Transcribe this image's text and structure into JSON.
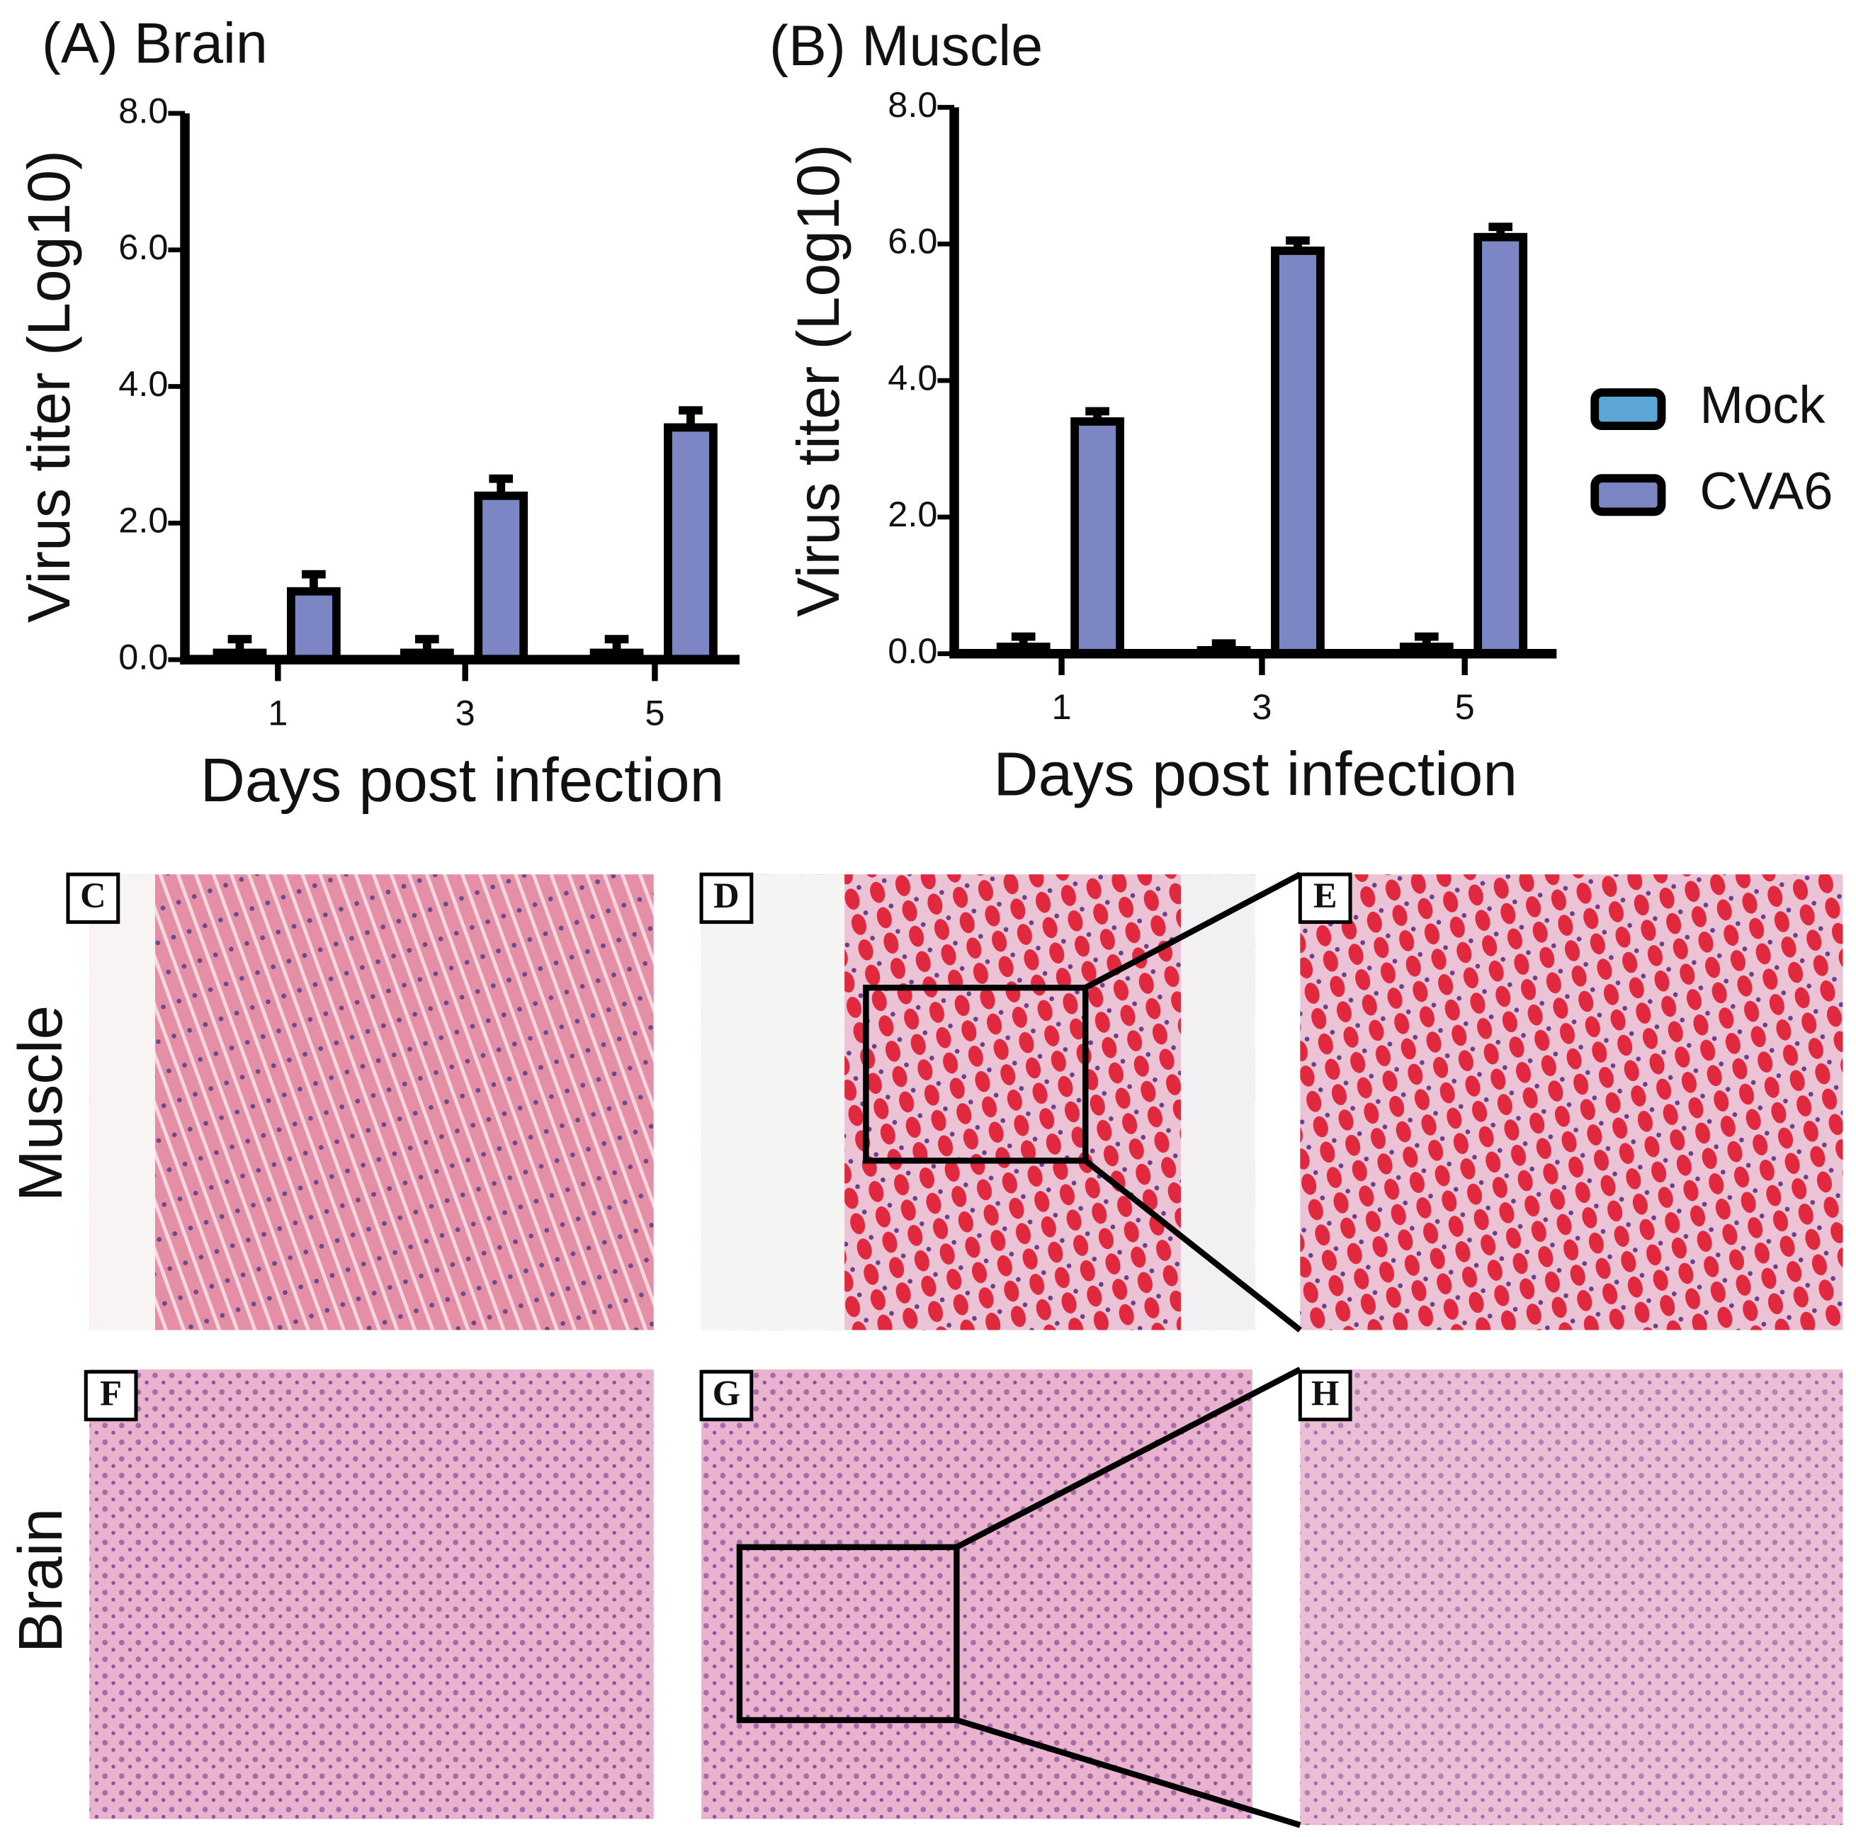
{
  "chart_data": [
    {
      "type": "bar",
      "title": "(A) Brain",
      "x_label": "Days post infection",
      "y_label": "Virus titer (Log10)",
      "categories": [
        "1",
        "3",
        "5"
      ],
      "series": [
        {
          "color": "#5ba6d4",
          "values": [
            0.1,
            0.1,
            0.1
          ],
          "errors": [
            0.2,
            0.2,
            0.2
          ]
        },
        {
          "color": "#7c86c4",
          "values": [
            1.0,
            2.4,
            3.4
          ],
          "errors": [
            0.25,
            0.25,
            0.25
          ]
        }
      ],
      "ylim": [
        0,
        8
      ],
      "yticks": [
        {
          "value": 0,
          "label": "0.0"
        },
        {
          "value": 2,
          "label": "2.0"
        },
        {
          "value": 4,
          "label": "4.0"
        },
        {
          "value": 6,
          "label": "6.0"
        },
        {
          "value": 8,
          "label": "8.0"
        }
      ]
    },
    {
      "type": "bar",
      "title": "(B) Muscle",
      "x_label": "Days post infection",
      "y_label": "Virus titer (Log10)",
      "categories": [
        "1",
        "3",
        "5"
      ],
      "series": [
        {
          "name": "Mock",
          "color": "#5ba6d4",
          "values": [
            0.1,
            0.05,
            0.1
          ],
          "errors": [
            0.15,
            0.1,
            0.15
          ]
        },
        {
          "name": "CVA6",
          "color": "#7c86c4",
          "values": [
            3.4,
            5.9,
            6.1
          ],
          "errors": [
            0.15,
            0.15,
            0.15
          ]
        }
      ],
      "ylim": [
        0,
        8
      ],
      "yticks": [
        {
          "value": 0,
          "label": "0.0"
        },
        {
          "value": 2,
          "label": "2.0"
        },
        {
          "value": 4,
          "label": "4.0"
        },
        {
          "value": 6,
          "label": "6.0"
        },
        {
          "value": 8,
          "label": "8.0"
        }
      ],
      "legend": "right"
    }
  ],
  "figure": {
    "row_labels": [
      "Muscle",
      "Brain"
    ],
    "panels": [
      "C",
      "D",
      "E",
      "F",
      "G",
      "H"
    ]
  }
}
